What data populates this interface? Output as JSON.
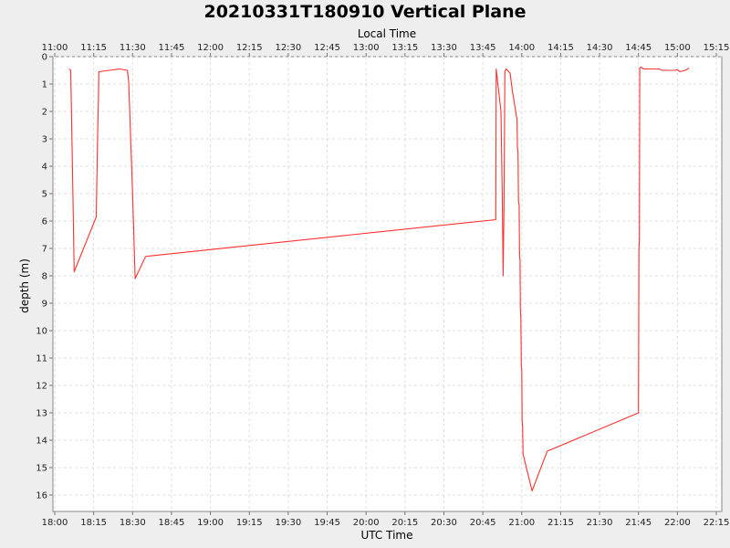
{
  "chart_data": {
    "type": "line",
    "title": "20210331T180910 Vertical Plane",
    "top_axis_label": "Local Time",
    "bottom_axis_label": "UTC Time",
    "ylabel": "depth (m)",
    "y_inverted": true,
    "ylim": [
      0,
      16.6
    ],
    "y_ticks": [
      "0",
      "1",
      "2",
      "3",
      "4",
      "5",
      "6",
      "7",
      "8",
      "9",
      "10",
      "11",
      "12",
      "13",
      "14",
      "15",
      "16"
    ],
    "xlim_utc": [
      "18:00",
      "22:15"
    ],
    "local_offset_hours": -7,
    "x_ticks_utc": [
      "18:00",
      "18:15",
      "18:30",
      "18:45",
      "19:00",
      "19:15",
      "19:30",
      "19:45",
      "20:00",
      "20:15",
      "20:30",
      "20:45",
      "21:00",
      "21:15",
      "21:30",
      "21:45",
      "22:00",
      "22:15"
    ],
    "x_ticks_local": [
      "11:00",
      "11:15",
      "11:30",
      "11:45",
      "12:00",
      "12:15",
      "12:30",
      "12:45",
      "13:00",
      "13:15",
      "13:30",
      "13:45",
      "14:00",
      "14:15",
      "14:30",
      "14:45",
      "15:00",
      "15:15"
    ],
    "grid": true,
    "background": "#ffffff",
    "series": [
      {
        "color": "#ff3030",
        "points": [
          [
            "18:05:30",
            0.45
          ],
          [
            "18:06:10",
            0.5
          ],
          [
            "18:07:00",
            5.0
          ],
          [
            "18:07:30",
            7.85
          ],
          [
            "18:16:00",
            5.85
          ],
          [
            "18:16:30",
            3.0
          ],
          [
            "18:16:50",
            1.5
          ],
          [
            "18:17:00",
            0.55
          ],
          [
            "18:21:00",
            0.5
          ],
          [
            "18:25:00",
            0.45
          ],
          [
            "18:28:00",
            0.5
          ],
          [
            "18:28:30",
            0.9
          ],
          [
            "18:30:00",
            5.0
          ],
          [
            "18:31:00",
            8.1
          ],
          [
            "18:35:00",
            7.3
          ],
          [
            "18:36:00",
            7.28
          ],
          [
            "20:50:00",
            5.95
          ],
          [
            "20:50:10",
            0.45
          ],
          [
            "20:52:00",
            2.0
          ],
          [
            "20:52:30",
            5.0
          ],
          [
            "20:52:50",
            8.0
          ],
          [
            "20:53:10",
            5.5
          ],
          [
            "20:53:30",
            0.55
          ],
          [
            "20:54:00",
            0.45
          ],
          [
            "20:55:30",
            0.6
          ],
          [
            "20:56:20",
            1.2
          ],
          [
            "20:58:10",
            2.3
          ],
          [
            "20:58:20",
            3.3
          ],
          [
            "20:58:35",
            3.5
          ],
          [
            "20:58:45",
            5.3
          ],
          [
            "20:59:00",
            5.4
          ],
          [
            "20:59:10",
            7.3
          ],
          [
            "20:59:20",
            7.4
          ],
          [
            "20:59:30",
            9.3
          ],
          [
            "20:59:40",
            9.5
          ],
          [
            "20:59:50",
            11.3
          ],
          [
            "21:00:00",
            11.4
          ],
          [
            "21:00:10",
            13.3
          ],
          [
            "21:00:20",
            13.5
          ],
          [
            "21:00:30",
            14.5
          ],
          [
            "21:04:00",
            15.85
          ],
          [
            "21:09:50",
            14.4
          ],
          [
            "21:45:00",
            13.0
          ],
          [
            "21:45:10",
            7.0
          ],
          [
            "21:45:20",
            6.7
          ],
          [
            "21:45:30",
            0.42
          ],
          [
            "21:46:00",
            0.38
          ],
          [
            "21:47:00",
            0.45
          ],
          [
            "21:53:00",
            0.45
          ],
          [
            "21:54:00",
            0.5
          ],
          [
            "21:59:00",
            0.5
          ],
          [
            "22:00:00",
            0.48
          ],
          [
            "22:01:00",
            0.55
          ],
          [
            "22:03:00",
            0.5
          ],
          [
            "22:04:30",
            0.42
          ]
        ]
      }
    ]
  }
}
